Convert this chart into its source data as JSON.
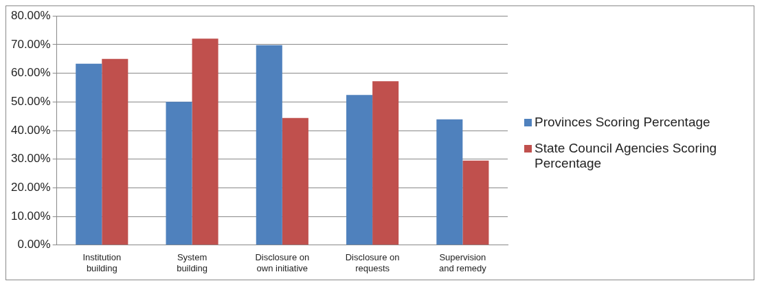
{
  "chart_data": {
    "type": "bar",
    "categories": [
      "Institution building",
      "System building",
      "Disclosure on own initiative",
      "Disclosure on requests",
      "Supervision and remedy"
    ],
    "series": [
      {
        "name": "Provinces Scoring Percentage",
        "color": "#4f81bd",
        "values": [
          63.3,
          50.0,
          69.8,
          52.4,
          43.9
        ]
      },
      {
        "name": "State Council Agencies Scoring Percentage",
        "color": "#c0504d",
        "values": [
          65.0,
          72.1,
          44.4,
          57.2,
          29.5
        ]
      }
    ],
    "ylim": [
      0,
      80
    ],
    "yticks": [
      {
        "value": 0,
        "label": "0.00%"
      },
      {
        "value": 10,
        "label": "10.00%"
      },
      {
        "value": 20,
        "label": "20.00%"
      },
      {
        "value": 30,
        "label": "30.00%"
      },
      {
        "value": 40,
        "label": "40.00%"
      },
      {
        "value": 50,
        "label": "50.00%"
      },
      {
        "value": 60,
        "label": "60.00%"
      },
      {
        "value": 70,
        "label": "70.00%"
      },
      {
        "value": 80,
        "label": "80.00%"
      }
    ],
    "grid": "y",
    "legend": "right"
  }
}
